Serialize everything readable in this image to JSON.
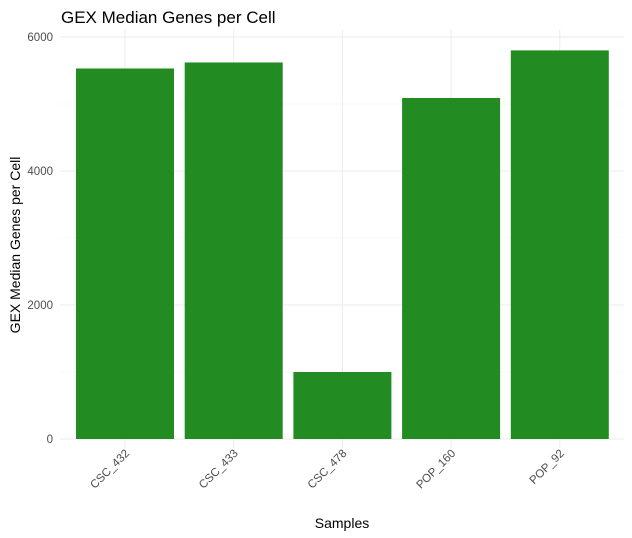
{
  "chart_data": {
    "type": "bar",
    "title": "GEX Median Genes per Cell",
    "xlabel": "Samples",
    "ylabel": "GEX Median Genes per Cell",
    "categories": [
      "CSC_432",
      "CSC_433",
      "CSC_478",
      "POP_160",
      "POP_92"
    ],
    "values": [
      5530,
      5620,
      1000,
      5090,
      5800
    ],
    "ylim": [
      0,
      6000
    ],
    "yticks": [
      "0",
      "2000",
      "4000",
      "6000"
    ],
    "grid": true,
    "legend": "none",
    "bar_color": "#228B22"
  }
}
